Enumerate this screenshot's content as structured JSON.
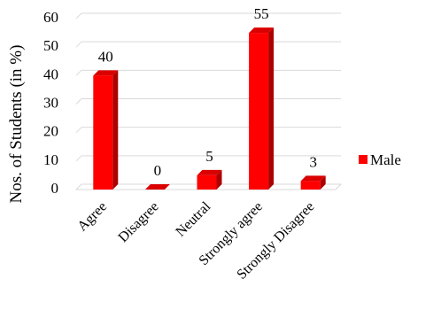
{
  "chart_data": {
    "type": "bar",
    "style": "3d-clustered",
    "title": "",
    "xlabel": "",
    "ylabel": "Nos. of Students (in %)",
    "categories": [
      "Agree",
      "Disagree",
      "Neutral",
      "Strongly agree",
      "Strongly Disagree"
    ],
    "series": [
      {
        "name": "Male",
        "values": [
          40,
          0,
          5,
          55,
          3
        ],
        "color": "#ff0000"
      }
    ],
    "ylim": [
      0,
      60
    ],
    "yticks": [
      0,
      10,
      20,
      30,
      40,
      50,
      60
    ],
    "grid": true,
    "legend": "right",
    "data_labels": true
  }
}
